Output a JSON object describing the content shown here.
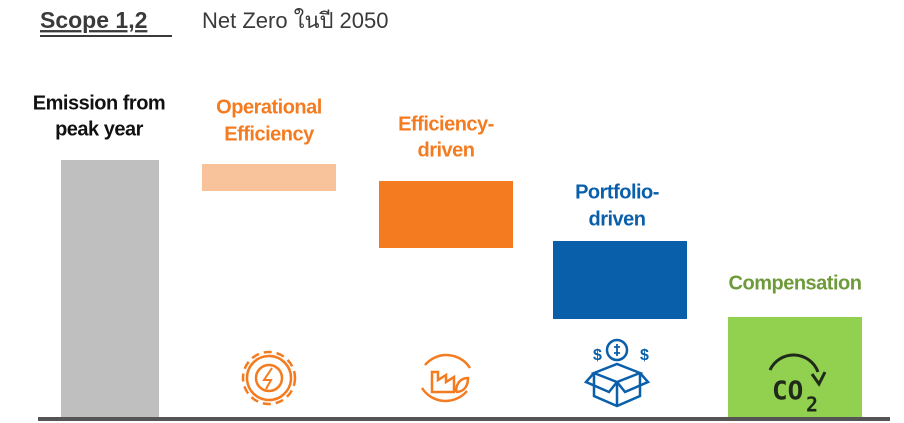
{
  "header": {
    "scope": "Scope 1,2",
    "title": "Net Zero ในปี 2050"
  },
  "steps": [
    {
      "label": [
        "Emission from",
        "peak year"
      ]
    },
    {
      "label": [
        "Operational",
        "Efficiency"
      ]
    },
    {
      "label": [
        "Efficiency-",
        "driven"
      ]
    },
    {
      "label": [
        "Portfolio-",
        "driven"
      ]
    },
    {
      "label": [
        "Compensation"
      ],
      "icon_text": [
        "CO",
        "2"
      ]
    }
  ]
}
